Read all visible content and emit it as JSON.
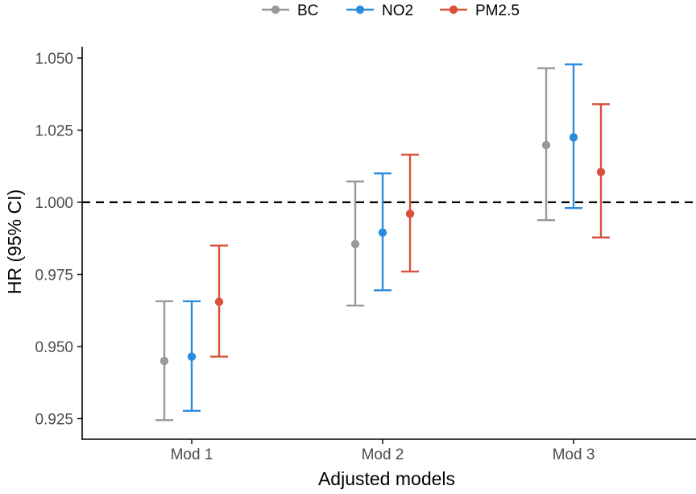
{
  "chart_data": {
    "type": "errorbar",
    "title": "",
    "xlabel": "Adjusted models",
    "ylabel": "HR (95% CI)",
    "categories": [
      "Mod 1",
      "Mod 2",
      "Mod 3"
    ],
    "ylim": [
      0.92,
      1.0555
    ],
    "yticks": [
      0.925,
      0.95,
      0.975,
      1.0,
      1.025,
      1.05
    ],
    "ytick_labels": [
      "0.925",
      "0.950",
      "0.975",
      "1.000",
      "1.025",
      "1.050"
    ],
    "reference_line": 1.0,
    "legend_position": "top",
    "series": [
      {
        "name": "BC",
        "color": "#999999",
        "estimates": [
          0.945,
          0.9855,
          1.0198
        ],
        "lower": [
          0.9245,
          0.9642,
          0.9938
        ],
        "upper": [
          0.9657,
          1.0072,
          1.0465
        ]
      },
      {
        "name": "NO2",
        "color": "#2b8cde",
        "estimates": [
          0.9465,
          0.9895,
          1.0225
        ],
        "lower": [
          0.9277,
          0.9695,
          0.998
        ],
        "upper": [
          0.9657,
          1.01,
          1.0478
        ]
      },
      {
        "name": "PM2.5",
        "color": "#d9503c",
        "estimates": [
          0.9655,
          0.996,
          1.0105
        ],
        "lower": [
          0.9465,
          0.976,
          0.9878
        ],
        "upper": [
          0.985,
          1.0165,
          1.034
        ]
      }
    ]
  }
}
